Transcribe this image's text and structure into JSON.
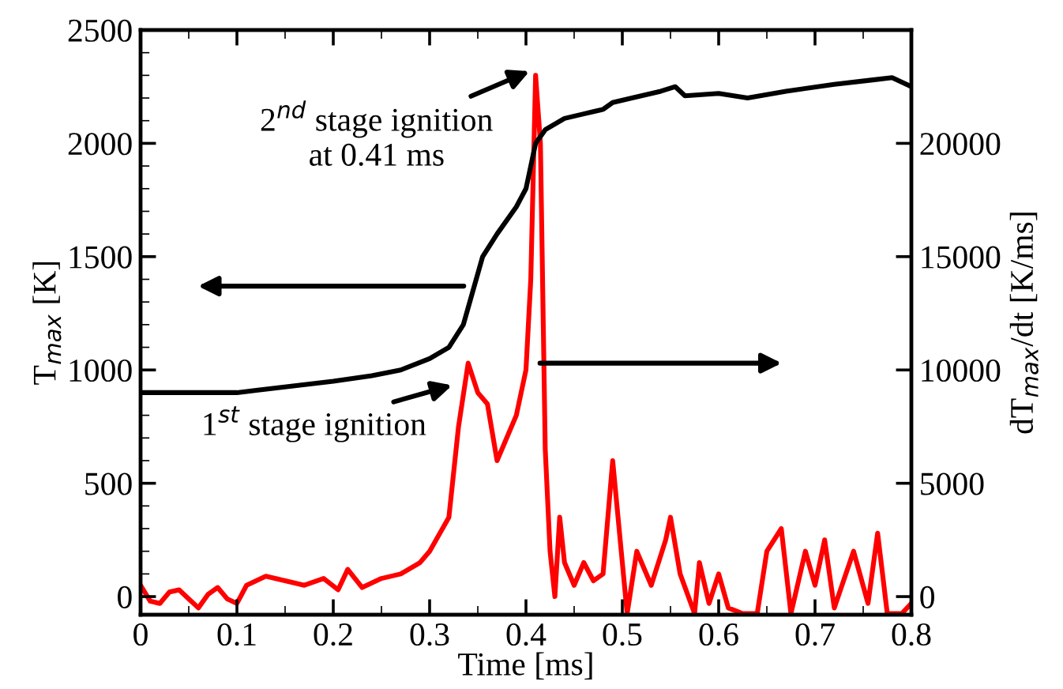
{
  "chart_data": {
    "type": "line",
    "xlabel": "Time [ms]",
    "ylabel": "T$_{max}$ [K]",
    "y2label": "dT$_{max}$/dt [K/ms]",
    "xlim": [
      0,
      0.8
    ],
    "xticks": [
      0,
      0.1,
      0.2,
      0.3,
      0.4,
      0.5,
      0.6,
      0.7,
      0.8
    ],
    "ylim": [
      -80,
      2500
    ],
    "yticks": [
      0,
      500,
      1000,
      1500,
      2000,
      2500
    ],
    "y2lim": [
      -800,
      25000
    ],
    "y2ticks": [
      0,
      5000,
      10000,
      15000,
      20000
    ],
    "grid": false,
    "marker": "none",
    "line_style": "solid",
    "series": [
      {
        "color": "#000000",
        "x": [
          0,
          0.05,
          0.1,
          0.12,
          0.16,
          0.2,
          0.24,
          0.27,
          0.3,
          0.32,
          0.335,
          0.345,
          0.355,
          0.37,
          0.39,
          0.4,
          0.405,
          0.41,
          0.42,
          0.44,
          0.46,
          0.47,
          0.48,
          0.49,
          0.51,
          0.54,
          0.555,
          0.565,
          0.6,
          0.63,
          0.67,
          0.72,
          0.76,
          0.78,
          0.8
        ],
        "values": [
          900,
          900,
          900,
          910,
          930,
          950,
          975,
          1000,
          1050,
          1100,
          1200,
          1350,
          1500,
          1600,
          1720,
          1800,
          1900,
          2000,
          2060,
          2110,
          2130,
          2140,
          2150,
          2180,
          2200,
          2230,
          2250,
          2210,
          2220,
          2200,
          2230,
          2260,
          2280,
          2290,
          2250
        ]
      },
      {
        "color": "#ff0000",
        "axis": "y2",
        "x": [
          0,
          0.01,
          0.02,
          0.03,
          0.04,
          0.05,
          0.06,
          0.07,
          0.08,
          0.09,
          0.1,
          0.11,
          0.13,
          0.15,
          0.17,
          0.19,
          0.205,
          0.215,
          0.23,
          0.25,
          0.27,
          0.29,
          0.3,
          0.32,
          0.33,
          0.34,
          0.35,
          0.36,
          0.37,
          0.38,
          0.39,
          0.4,
          0.405,
          0.41,
          0.415,
          0.42,
          0.425,
          0.43,
          0.435,
          0.44,
          0.45,
          0.46,
          0.47,
          0.48,
          0.49,
          0.5,
          0.505,
          0.515,
          0.53,
          0.545,
          0.55,
          0.56,
          0.575,
          0.58,
          0.59,
          0.6,
          0.61,
          0.625,
          0.64,
          0.65,
          0.665,
          0.675,
          0.69,
          0.7,
          0.71,
          0.72,
          0.74,
          0.755,
          0.765,
          0.775,
          0.79,
          0.8
        ],
        "values": [
          500,
          -200,
          -300,
          200,
          300,
          -100,
          -500,
          100,
          400,
          -100,
          -300,
          500,
          900,
          700,
          500,
          800,
          300,
          1200,
          400,
          800,
          1000,
          1500,
          2000,
          3500,
          7500,
          10300,
          9000,
          8500,
          6000,
          7000,
          8000,
          10000,
          14000,
          23000,
          20000,
          6500,
          2000,
          0,
          3500,
          1500,
          500,
          1500,
          700,
          1000,
          6000,
          1500,
          -750,
          2000,
          500,
          2500,
          3500,
          1000,
          -750,
          1500,
          -300,
          1000,
          -500,
          -750,
          -750,
          2000,
          3000,
          -750,
          2000,
          500,
          2500,
          -500,
          2000,
          -300,
          2800,
          -750,
          -750,
          -300
        ]
      }
    ],
    "annotations": [
      {
        "text": "2$^{nd}$ stage ignition\nat 0.41 ms",
        "x": 0.41,
        "y": 2330
      },
      {
        "text": "1$^{st}$ stage ignition",
        "x": 0.33,
        "y": 940
      }
    ]
  }
}
